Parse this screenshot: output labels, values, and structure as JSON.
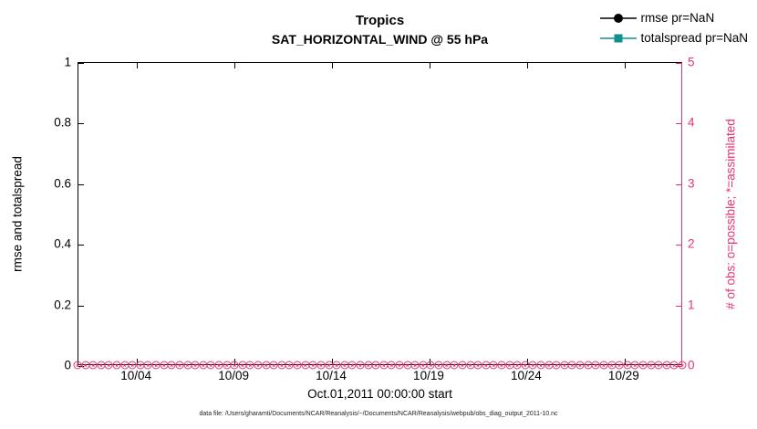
{
  "header": {
    "title": "Tropics",
    "subtitle": "SAT_HORIZONTAL_WIND @ 55 hPa"
  },
  "caption": "data file: /Users/gharamti/Documents/NCAR/Reanalysis/~/Documents/NCAR/Reanalysis/webpub/obs_diag_output_2011-10.nc",
  "chart_data": {
    "type": "line",
    "title": "Tropics",
    "subtitle": "SAT_HORIZONTAL_WIND @ 55 hPa",
    "xlabel": "Oct.01,2011 00:00:00 start",
    "ylabel_left": "rmse and totalspread",
    "ylabel_right": "# of obs: o=possible; *=assimilated",
    "grid": false,
    "legend_position": "top-right-inside",
    "x_axis": {
      "range_days": [
        1,
        32
      ],
      "tick_days": [
        4,
        9,
        14,
        19,
        24,
        29
      ],
      "tick_labels": [
        "10/04",
        "10/09",
        "10/14",
        "10/19",
        "10/24",
        "10/29"
      ]
    },
    "y_left": {
      "range": [
        0,
        1
      ],
      "ticks": [
        0,
        0.2,
        0.4,
        0.6,
        0.8,
        1
      ],
      "tick_labels": [
        "0",
        "0.2",
        "0.4",
        "0.6",
        "0.8",
        "1"
      ],
      "color": "#000000"
    },
    "y_right": {
      "range": [
        0,
        5
      ],
      "ticks": [
        0,
        1,
        2,
        3,
        4,
        5
      ],
      "tick_labels": [
        "0",
        "1",
        "2",
        "3",
        "4",
        "5"
      ],
      "color": "#e8336d"
    },
    "series": [
      {
        "name": "rmse pr=NaN",
        "color": "#000000",
        "marker": "circle",
        "values": "NaN (no curve drawn)"
      },
      {
        "name": "totalspread pr=NaN",
        "color": "#12908e",
        "marker": "square",
        "values": "NaN (no curve drawn)"
      }
    ],
    "obs_counts": {
      "color": "#e8336d",
      "possible_symbol": "o",
      "assimilated_symbol": "*",
      "value": 0,
      "marker_count": 78,
      "note": "possible and assimilated observation counts all zero along right axis"
    }
  }
}
